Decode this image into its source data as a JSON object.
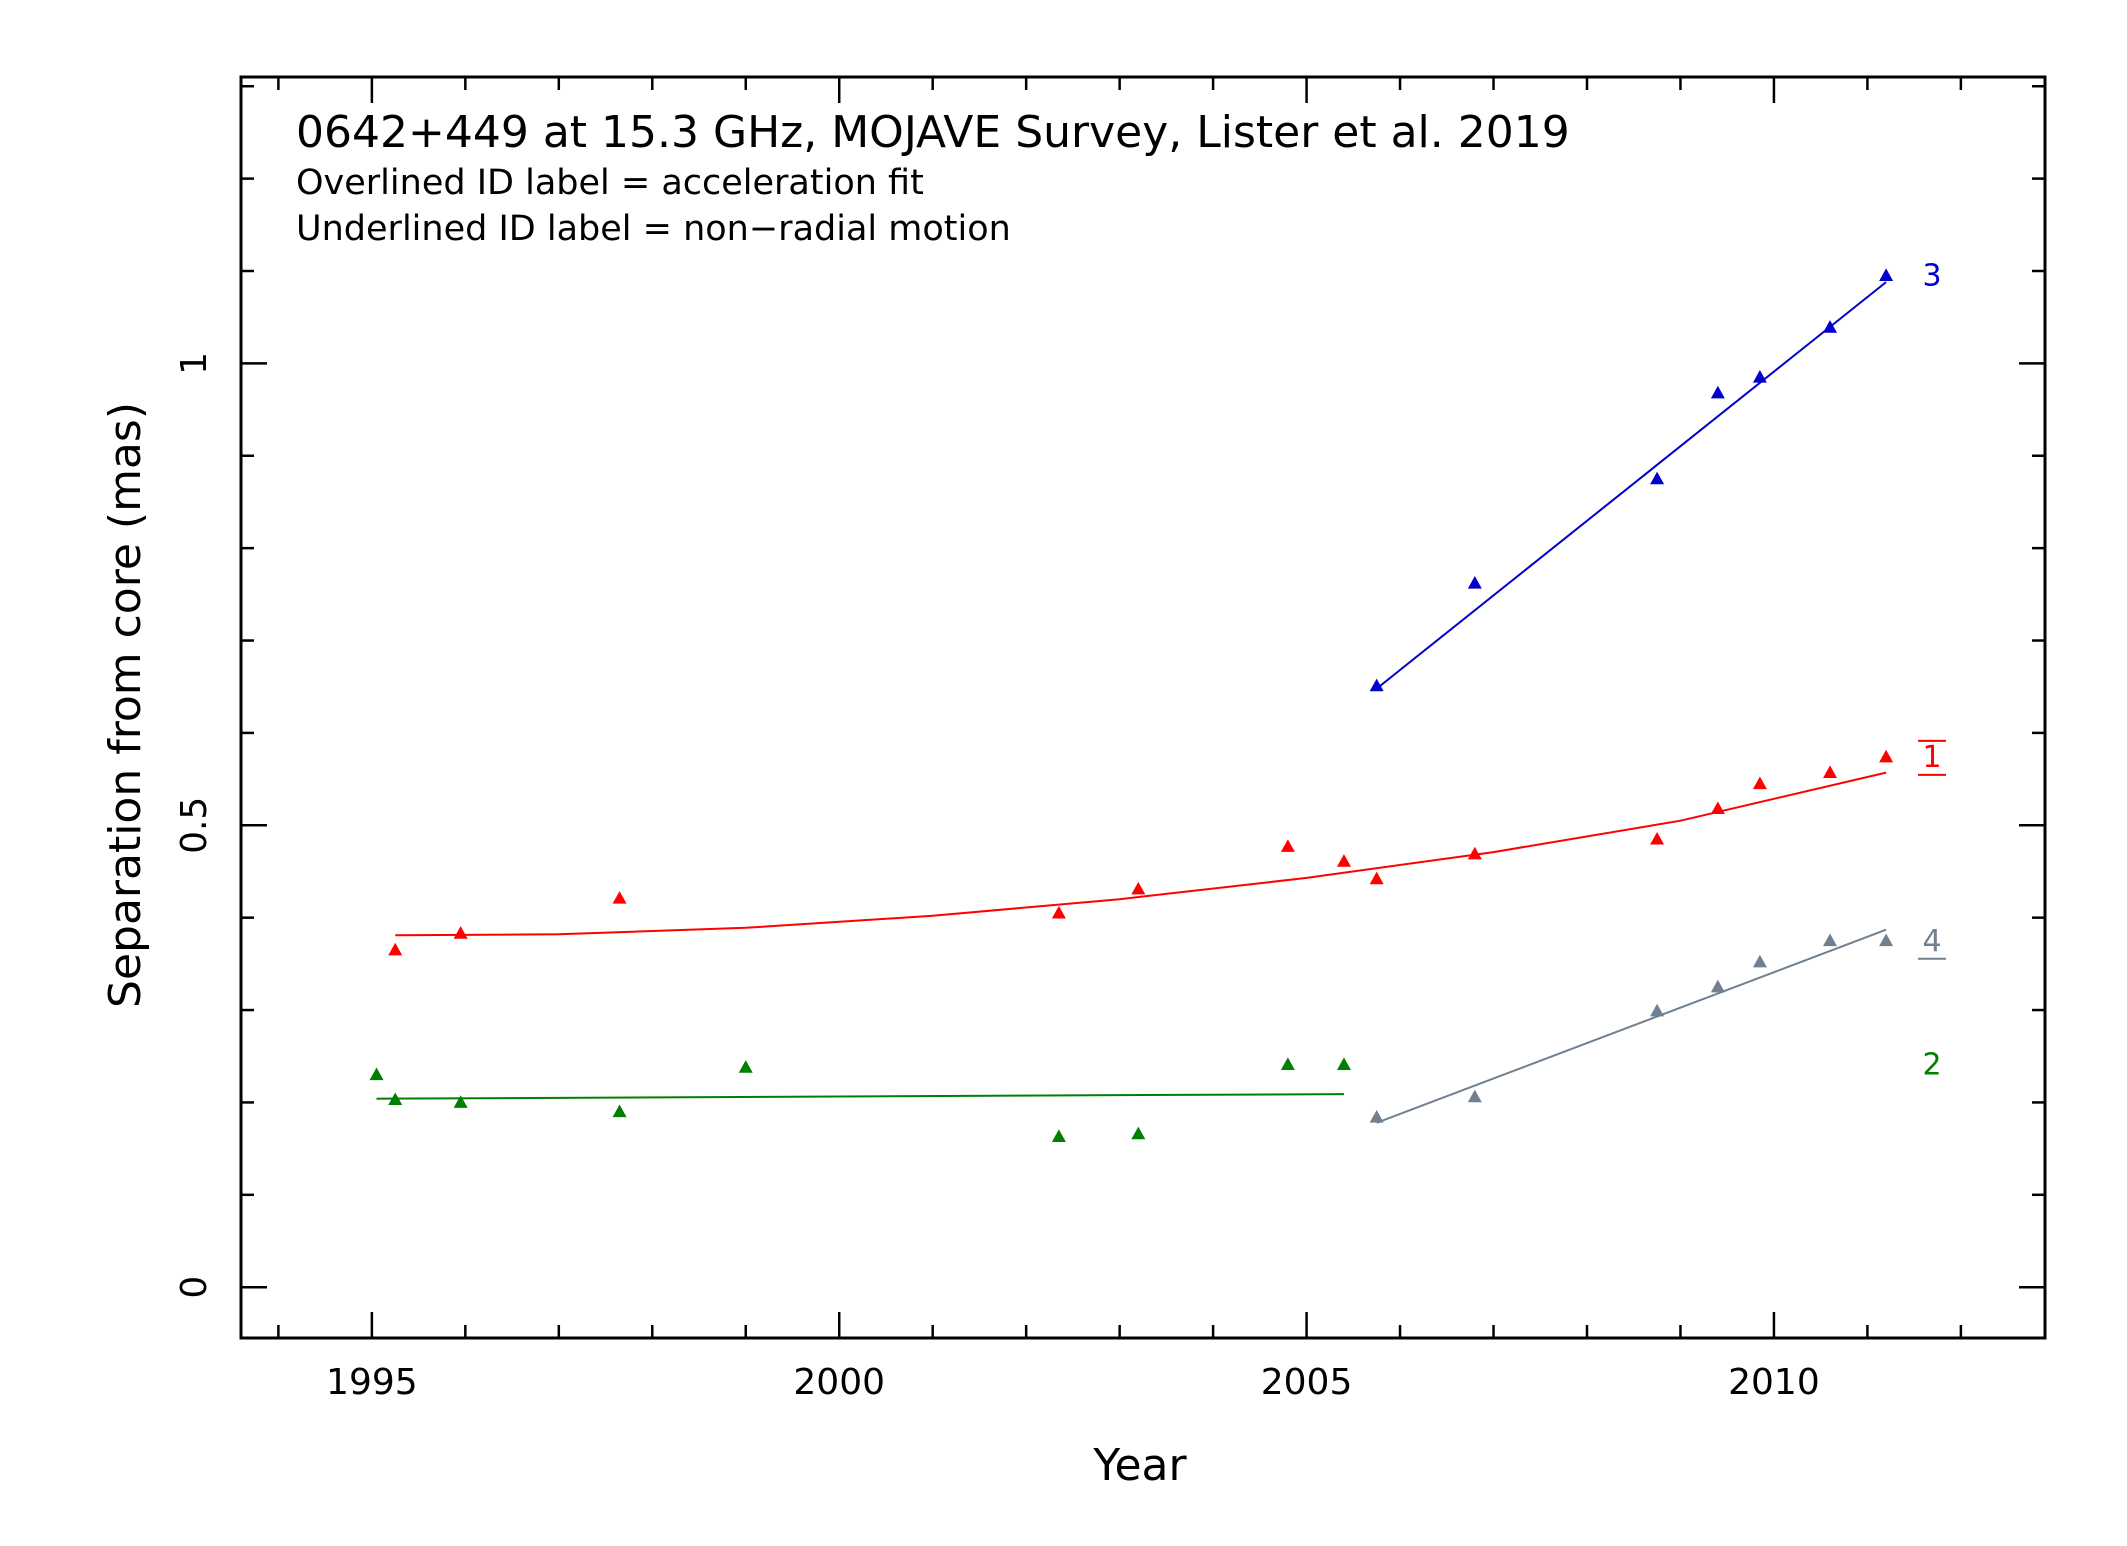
{
  "chart_data": {
    "type": "scatter",
    "title": "0642+449 at 15.3 GHz, MOJAVE Survey, Lister et al. 2019",
    "notes": [
      "Overlined ID label = acceleration fit",
      "Underlined ID label = non−radial motion"
    ],
    "xlabel": "Year",
    "ylabel": "Separation from core (mas)",
    "xlim": [
      1993.6,
      2012.9
    ],
    "ylim": [
      -0.055,
      1.31
    ],
    "xticks": [
      1995,
      2000,
      2005,
      2010
    ],
    "xtick_labels": [
      "1995",
      "2000",
      "2005",
      "2010"
    ],
    "yticks": [
      0,
      0.5,
      1
    ],
    "ytick_labels": [
      "0",
      "0.5",
      "1"
    ],
    "x_minor_step": 1,
    "y_minor_step": 0.1,
    "grid": false,
    "marker": "triangle",
    "series": [
      {
        "name": "1",
        "color": "#ff0000",
        "overlined": true,
        "underlined": true,
        "fit": "quadratic",
        "points": [
          {
            "x": 1995.25,
            "y": 0.365
          },
          {
            "x": 1995.95,
            "y": 0.383
          },
          {
            "x": 1997.65,
            "y": 0.421
          },
          {
            "x": 2002.35,
            "y": 0.405
          },
          {
            "x": 2003.2,
            "y": 0.431
          },
          {
            "x": 2004.8,
            "y": 0.477
          },
          {
            "x": 2005.4,
            "y": 0.461
          },
          {
            "x": 2005.75,
            "y": 0.442
          },
          {
            "x": 2006.8,
            "y": 0.469
          },
          {
            "x": 2008.75,
            "y": 0.485
          },
          {
            "x": 2009.4,
            "y": 0.518
          },
          {
            "x": 2009.85,
            "y": 0.545
          },
          {
            "x": 2010.6,
            "y": 0.557
          },
          {
            "x": 2011.2,
            "y": 0.574
          }
        ],
        "fit_points": [
          {
            "x": 1995.25,
            "y": 0.381
          },
          {
            "x": 1997.0,
            "y": 0.382
          },
          {
            "x": 1999.0,
            "y": 0.389
          },
          {
            "x": 2001.0,
            "y": 0.402
          },
          {
            "x": 2003.0,
            "y": 0.42
          },
          {
            "x": 2005.0,
            "y": 0.443
          },
          {
            "x": 2007.0,
            "y": 0.471
          },
          {
            "x": 2009.0,
            "y": 0.505
          },
          {
            "x": 2011.2,
            "y": 0.557
          }
        ]
      },
      {
        "name": "2",
        "color": "#008000",
        "overlined": false,
        "underlined": false,
        "fit": "linear",
        "points": [
          {
            "x": 1995.05,
            "y": 0.23
          },
          {
            "x": 1995.25,
            "y": 0.203
          },
          {
            "x": 1995.95,
            "y": 0.2
          },
          {
            "x": 1997.65,
            "y": 0.19
          },
          {
            "x": 1999.0,
            "y": 0.238
          },
          {
            "x": 2002.35,
            "y": 0.163
          },
          {
            "x": 2003.2,
            "y": 0.166
          },
          {
            "x": 2004.8,
            "y": 0.241
          },
          {
            "x": 2005.4,
            "y": 0.241
          }
        ],
        "fit_points": [
          {
            "x": 1995.05,
            "y": 0.204
          },
          {
            "x": 2005.4,
            "y": 0.209
          }
        ]
      },
      {
        "name": "3",
        "color": "#0000cc",
        "overlined": false,
        "underlined": false,
        "fit": "linear",
        "points": [
          {
            "x": 2005.75,
            "y": 0.651
          },
          {
            "x": 2006.8,
            "y": 0.762
          },
          {
            "x": 2008.75,
            "y": 0.875
          },
          {
            "x": 2009.4,
            "y": 0.968
          },
          {
            "x": 2009.85,
            "y": 0.985
          },
          {
            "x": 2010.6,
            "y": 1.039
          },
          {
            "x": 2011.2,
            "y": 1.095
          }
        ],
        "fit_points": [
          {
            "x": 2005.75,
            "y": 0.648
          },
          {
            "x": 2011.2,
            "y": 1.088
          }
        ]
      },
      {
        "name": "4",
        "color": "#708090",
        "overlined": false,
        "underlined": true,
        "fit": "linear",
        "points": [
          {
            "x": 2005.75,
            "y": 0.184
          },
          {
            "x": 2006.8,
            "y": 0.206
          },
          {
            "x": 2008.75,
            "y": 0.299
          },
          {
            "x": 2009.4,
            "y": 0.325
          },
          {
            "x": 2009.85,
            "y": 0.352
          },
          {
            "x": 2010.6,
            "y": 0.375
          },
          {
            "x": 2011.2,
            "y": 0.375
          }
        ],
        "fit_points": [
          {
            "x": 2005.75,
            "y": 0.178
          },
          {
            "x": 2011.2,
            "y": 0.387
          }
        ]
      }
    ]
  }
}
